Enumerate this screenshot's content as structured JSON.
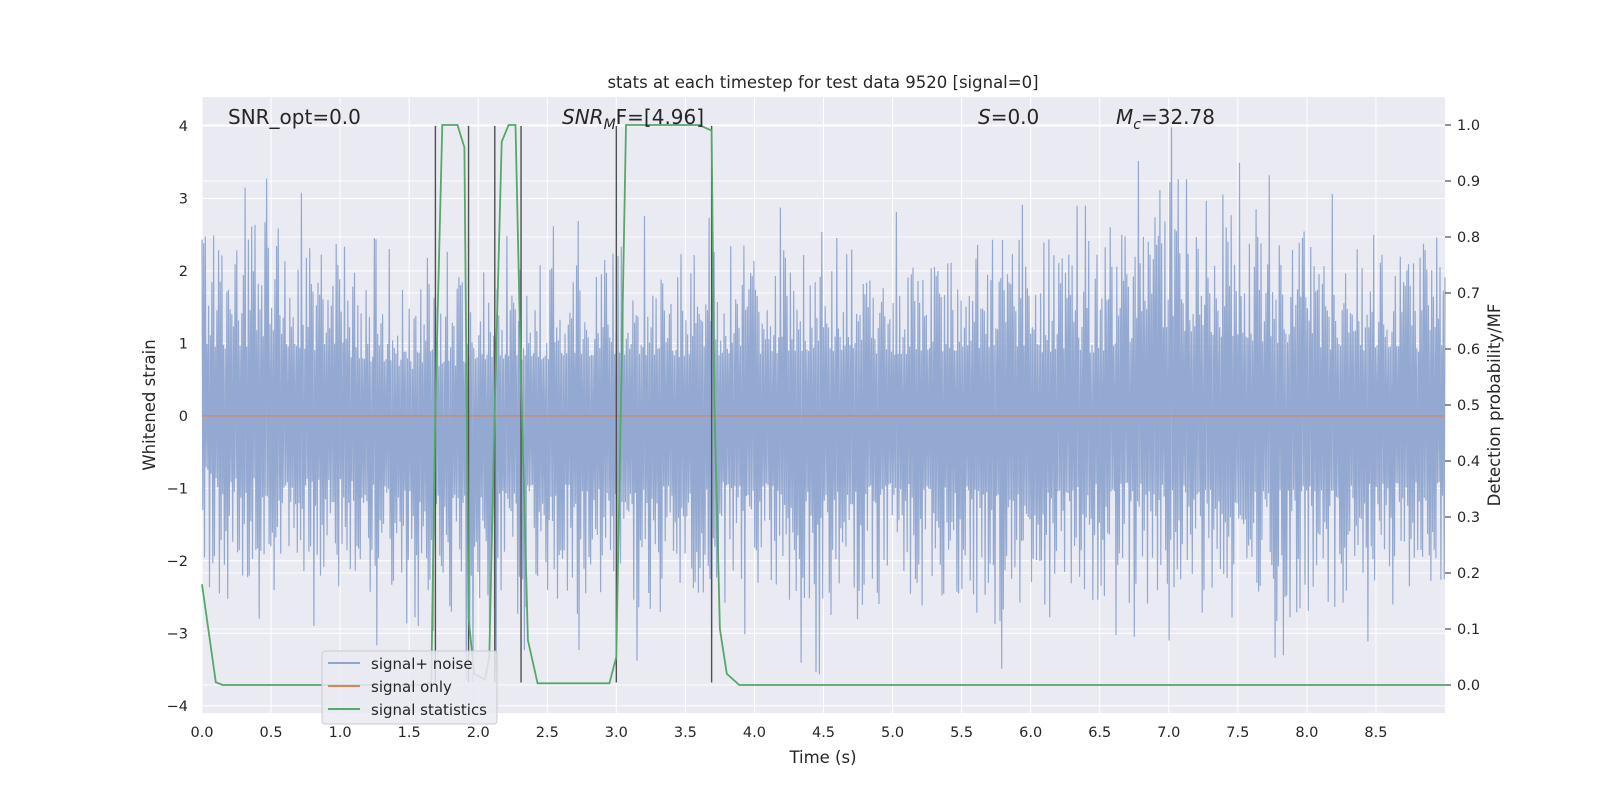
{
  "chart_data": {
    "type": "line",
    "title": "stats at each timestep for test data 9520 [signal=0]",
    "xlabel": "Time (s)",
    "ylabel": "Whitened strain",
    "ylabel_right": "Detection probability/MF",
    "xlim": [
      0.0,
      9.0
    ],
    "ylim": [
      -4.1,
      4.4
    ],
    "ylim_right": [
      -0.05,
      1.05
    ],
    "xticks": [
      "0.0",
      "0.5",
      "1.0",
      "1.5",
      "2.0",
      "2.5",
      "3.0",
      "3.5",
      "4.0",
      "4.5",
      "5.0",
      "5.5",
      "6.0",
      "6.5",
      "7.0",
      "7.5",
      "8.0",
      "8.5"
    ],
    "yticks": [
      "4",
      "3",
      "2",
      "1",
      "0",
      "−1",
      "−2",
      "−3",
      "−4"
    ],
    "yticks_right": [
      "1.0",
      "0.9",
      "0.8",
      "0.7",
      "0.6",
      "0.5",
      "0.4",
      "0.3",
      "0.2",
      "0.1",
      "0.0"
    ],
    "grid": true,
    "legend_position": "lower-left",
    "annotations": {
      "snr_opt": "SNR_opt=0.0",
      "snr_mf_main": "SNR",
      "snr_mf_sub": "M",
      "snr_mf_rest": "F=[4.96]",
      "s_main": "S",
      "s_rest": "=0.0",
      "mc_main": "M",
      "mc_sub": "c",
      "mc_rest": "=32.78"
    },
    "colors": {
      "noise": "#8fa5cf",
      "signal_only": "#dd8452",
      "statistics": "#55a868",
      "markers": "#505050",
      "background": "#eaeaf2",
      "grid": "#ffffff"
    },
    "series": [
      {
        "name": "signal+ noise",
        "description_axis": "left",
        "envelope": {
          "x": [
            0.0,
            0.5,
            1.0,
            1.5,
            2.0,
            2.5,
            3.0,
            3.5,
            4.0,
            4.5,
            5.0,
            5.5,
            6.0,
            6.5,
            7.0,
            7.5,
            8.0,
            8.5,
            9.0
          ],
          "upper": [
            2.9,
            3.3,
            2.8,
            2.1,
            2.4,
            2.6,
            2.8,
            2.7,
            2.8,
            3.0,
            2.8,
            3.0,
            2.9,
            2.9,
            4.0,
            3.5,
            3.1,
            3.0,
            2.9
          ],
          "lower": [
            -2.3,
            -2.9,
            -2.9,
            -3.4,
            -3.7,
            -3.0,
            -3.5,
            -3.1,
            -3.0,
            -3.6,
            -3.0,
            -3.2,
            -3.7,
            -3.0,
            -3.1,
            -3.5,
            -3.2,
            -3.1,
            -3.0
          ]
        }
      },
      {
        "name": "signal only",
        "axis": "left",
        "x": [
          0.0,
          9.0
        ],
        "y": [
          0.0,
          0.0
        ]
      },
      {
        "name": "signal statistics",
        "axis": "right",
        "x": [
          0.0,
          0.1,
          0.15,
          0.5,
          1.0,
          1.5,
          1.6,
          1.66,
          1.69,
          1.74,
          1.85,
          1.9,
          1.93,
          1.97,
          2.05,
          2.08,
          2.12,
          2.17,
          2.22,
          2.27,
          2.31,
          2.36,
          2.43,
          2.5,
          2.7,
          2.95,
          3.0,
          3.07,
          3.3,
          3.5,
          3.6,
          3.69,
          3.71,
          3.75,
          3.8,
          3.89,
          4.5,
          6.0,
          8.0,
          9.0
        ],
        "y": [
          0.18,
          0.005,
          0.0,
          0.0,
          0.0,
          0.0,
          0.0,
          0.005,
          0.5,
          1.0,
          1.0,
          0.96,
          0.12,
          0.02,
          0.01,
          0.05,
          0.5,
          0.97,
          1.0,
          1.0,
          0.55,
          0.08,
          0.003,
          0.003,
          0.003,
          0.003,
          0.05,
          1.0,
          1.0,
          1.0,
          1.0,
          0.99,
          0.5,
          0.1,
          0.02,
          0.0,
          0.0,
          0.0,
          0.0,
          0.0
        ]
      }
    ],
    "marker_lines": {
      "description": "vertical dark lines",
      "x": [
        1.69,
        1.93,
        2.12,
        2.31,
        3.0,
        3.69
      ],
      "y_range": [
        -3.68,
        4.0
      ]
    }
  }
}
